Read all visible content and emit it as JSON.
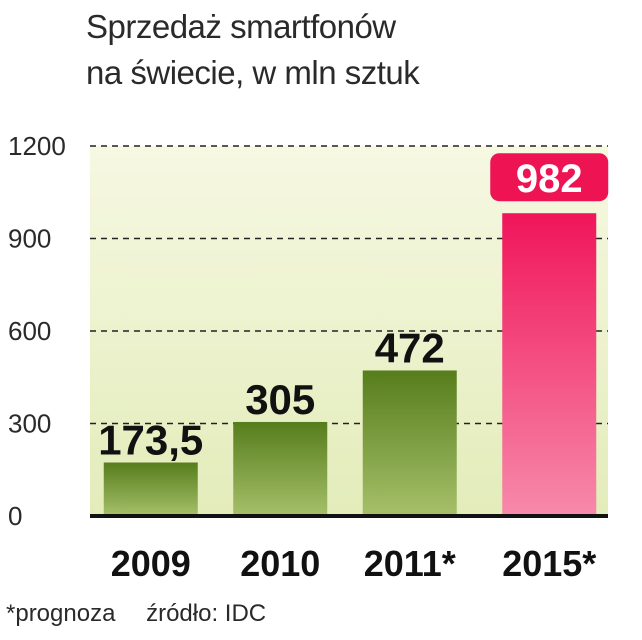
{
  "title_line1": "Sprzedaż smartfonów",
  "title_line2": "na świecie, w mln sztuk",
  "footnote": "*prognoza",
  "source": "źródło: IDC",
  "colors": {
    "green_top": "#567d1c",
    "green_bottom": "#a6c06a",
    "pink_top": "#f0155a",
    "pink_bottom": "#f78aab",
    "bg_top": "#f6f8e2",
    "bg_bottom": "#e3ecba",
    "label_badge": "#ee1454"
  },
  "chart_data": {
    "type": "bar",
    "title": "Sprzedaż smartfonów na świecie, w mln sztuk",
    "categories": [
      "2009",
      "2010",
      "2011*",
      "2015*"
    ],
    "values": [
      173.5,
      305,
      472,
      982
    ],
    "value_labels": [
      "173,5",
      "305",
      "472",
      "982"
    ],
    "yticks": [
      0,
      300,
      600,
      900,
      1200
    ],
    "ylim": [
      0,
      1200
    ],
    "grid": "dashed horizontal",
    "highlight_index": 3
  }
}
